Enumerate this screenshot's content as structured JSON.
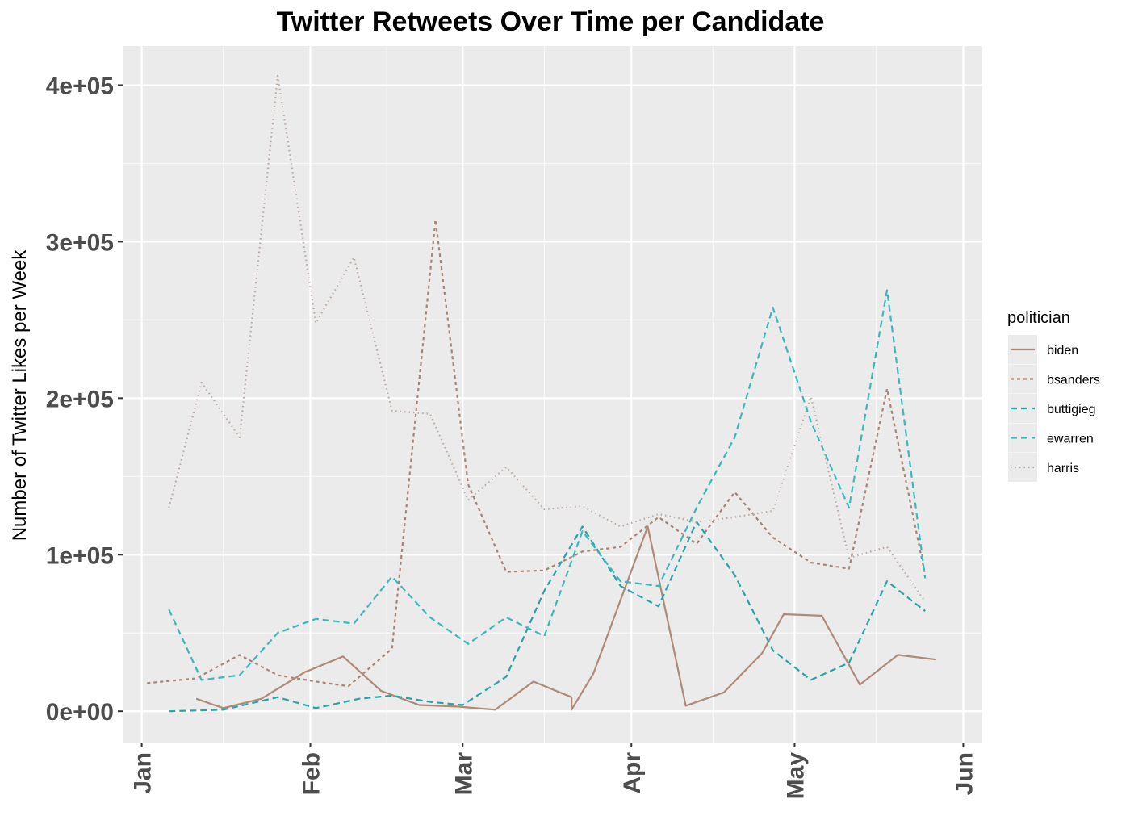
{
  "chart_data": {
    "type": "line",
    "title": "Twitter Retweets Over Time per Candidate",
    "ylabel": "Number of Twitter Likes per Week",
    "xlabel": "",
    "xlim": [
      "2019-01-01",
      "2019-06-01"
    ],
    "ylim": [
      -20000,
      425000
    ],
    "x_ticks": [
      {
        "date": "2019-01-01",
        "label": "Jan"
      },
      {
        "date": "2019-02-01",
        "label": "Feb"
      },
      {
        "date": "2019-03-01",
        "label": "Mar"
      },
      {
        "date": "2019-04-01",
        "label": "Apr"
      },
      {
        "date": "2019-05-01",
        "label": "May"
      },
      {
        "date": "2019-06-01",
        "label": "Jun"
      }
    ],
    "x_minor_dates": [
      "2019-01-16",
      "2019-02-15",
      "2019-03-16",
      "2019-04-16",
      "2019-05-16"
    ],
    "y_ticks": [
      {
        "value": 0,
        "label": "0e+00"
      },
      {
        "value": 100000,
        "label": "1e+05"
      },
      {
        "value": 200000,
        "label": "2e+05"
      },
      {
        "value": 300000,
        "label": "3e+05"
      },
      {
        "value": 400000,
        "label": "4e+05"
      }
    ],
    "y_minor_values": [
      50000,
      150000,
      250000,
      350000
    ],
    "grid": true,
    "legend": {
      "title": "politician",
      "position": "right"
    },
    "series": [
      {
        "name": "biden",
        "color": "#b08a78",
        "dash": "solid",
        "points": [
          {
            "x": "2019-01-11",
            "y": 8000
          },
          {
            "x": "2019-01-16",
            "y": 2000
          },
          {
            "x": "2019-01-23",
            "y": 8000
          },
          {
            "x": "2019-01-31",
            "y": 25000
          },
          {
            "x": "2019-02-07",
            "y": 35000
          },
          {
            "x": "2019-02-14",
            "y": 13000
          },
          {
            "x": "2019-02-21",
            "y": 4000
          },
          {
            "x": "2019-02-28",
            "y": 3000
          },
          {
            "x": "2019-03-07",
            "y": 1000
          },
          {
            "x": "2019-03-14",
            "y": 19000
          },
          {
            "x": "2019-03-21",
            "y": 9000
          },
          {
            "x": "2019-03-21",
            "y": 1000
          },
          {
            "x": "2019-03-25",
            "y": 24000
          },
          {
            "x": "2019-04-04",
            "y": 118000
          },
          {
            "x": "2019-04-11",
            "y": 3500
          },
          {
            "x": "2019-04-18",
            "y": 12000
          },
          {
            "x": "2019-04-25",
            "y": 37000
          },
          {
            "x": "2019-04-29",
            "y": 62000
          },
          {
            "x": "2019-05-06",
            "y": 61000
          },
          {
            "x": "2019-05-13",
            "y": 17000
          },
          {
            "x": "2019-05-20",
            "y": 36000
          },
          {
            "x": "2019-05-27",
            "y": 33000
          }
        ]
      },
      {
        "name": "bsanders",
        "color": "#a98373",
        "dash": "4 4",
        "points": [
          {
            "x": "2019-01-02",
            "y": 18000
          },
          {
            "x": "2019-01-11",
            "y": 21000
          },
          {
            "x": "2019-01-19",
            "y": 36000
          },
          {
            "x": "2019-01-26",
            "y": 23000
          },
          {
            "x": "2019-02-02",
            "y": 19000
          },
          {
            "x": "2019-02-08",
            "y": 16000
          },
          {
            "x": "2019-02-16",
            "y": 40000
          },
          {
            "x": "2019-02-24",
            "y": 314000
          },
          {
            "x": "2019-03-02",
            "y": 145000
          },
          {
            "x": "2019-03-09",
            "y": 89000
          },
          {
            "x": "2019-03-16",
            "y": 90000
          },
          {
            "x": "2019-03-23",
            "y": 102000
          },
          {
            "x": "2019-03-30",
            "y": 105000
          },
          {
            "x": "2019-04-06",
            "y": 124000
          },
          {
            "x": "2019-04-13",
            "y": 107000
          },
          {
            "x": "2019-04-20",
            "y": 140000
          },
          {
            "x": "2019-04-27",
            "y": 111000
          },
          {
            "x": "2019-05-04",
            "y": 95000
          },
          {
            "x": "2019-05-11",
            "y": 91000
          },
          {
            "x": "2019-05-18",
            "y": 206000
          },
          {
            "x": "2019-05-25",
            "y": 87000
          }
        ]
      },
      {
        "name": "buttigieg",
        "color": "#2aa3a8",
        "dash": "8 5",
        "points": [
          {
            "x": "2019-01-06",
            "y": 0
          },
          {
            "x": "2019-01-16",
            "y": 1000
          },
          {
            "x": "2019-01-26",
            "y": 9000
          },
          {
            "x": "2019-02-02",
            "y": 2000
          },
          {
            "x": "2019-02-10",
            "y": 8000
          },
          {
            "x": "2019-02-16",
            "y": 10000
          },
          {
            "x": "2019-02-23",
            "y": 6000
          },
          {
            "x": "2019-03-01",
            "y": 4000
          },
          {
            "x": "2019-03-09",
            "y": 22000
          },
          {
            "x": "2019-03-16",
            "y": 77000
          },
          {
            "x": "2019-03-23",
            "y": 118000
          },
          {
            "x": "2019-03-30",
            "y": 80000
          },
          {
            "x": "2019-04-06",
            "y": 67000
          },
          {
            "x": "2019-04-13",
            "y": 121000
          },
          {
            "x": "2019-04-20",
            "y": 87000
          },
          {
            "x": "2019-04-27",
            "y": 39000
          },
          {
            "x": "2019-05-04",
            "y": 20000
          },
          {
            "x": "2019-05-11",
            "y": 31000
          },
          {
            "x": "2019-05-18",
            "y": 83000
          },
          {
            "x": "2019-05-25",
            "y": 64000
          }
        ]
      },
      {
        "name": "ewarren",
        "color": "#3bb8bc",
        "dash": "8 5",
        "points": [
          {
            "x": "2019-01-06",
            "y": 65000
          },
          {
            "x": "2019-01-12",
            "y": 20000
          },
          {
            "x": "2019-01-19",
            "y": 23000
          },
          {
            "x": "2019-01-26",
            "y": 50000
          },
          {
            "x": "2019-02-02",
            "y": 59000
          },
          {
            "x": "2019-02-09",
            "y": 56000
          },
          {
            "x": "2019-02-16",
            "y": 86000
          },
          {
            "x": "2019-02-23",
            "y": 60000
          },
          {
            "x": "2019-03-02",
            "y": 43000
          },
          {
            "x": "2019-03-09",
            "y": 60000
          },
          {
            "x": "2019-03-16",
            "y": 48000
          },
          {
            "x": "2019-03-23",
            "y": 115000
          },
          {
            "x": "2019-03-30",
            "y": 83000
          },
          {
            "x": "2019-04-06",
            "y": 80000
          },
          {
            "x": "2019-04-13",
            "y": 130000
          },
          {
            "x": "2019-04-20",
            "y": 175000
          },
          {
            "x": "2019-04-27",
            "y": 258000
          },
          {
            "x": "2019-05-04",
            "y": 185000
          },
          {
            "x": "2019-05-11",
            "y": 130000
          },
          {
            "x": "2019-05-18",
            "y": 269000
          },
          {
            "x": "2019-05-25",
            "y": 85000
          }
        ]
      },
      {
        "name": "harris",
        "color": "#bdaaa2",
        "dash": "1.5 4",
        "points": [
          {
            "x": "2019-01-06",
            "y": 130000
          },
          {
            "x": "2019-01-12",
            "y": 210000
          },
          {
            "x": "2019-01-19",
            "y": 175000
          },
          {
            "x": "2019-01-26",
            "y": 406000
          },
          {
            "x": "2019-02-02",
            "y": 248000
          },
          {
            "x": "2019-02-09",
            "y": 290000
          },
          {
            "x": "2019-02-16",
            "y": 192000
          },
          {
            "x": "2019-02-23",
            "y": 190000
          },
          {
            "x": "2019-03-02",
            "y": 135000
          },
          {
            "x": "2019-03-09",
            "y": 156000
          },
          {
            "x": "2019-03-16",
            "y": 129000
          },
          {
            "x": "2019-03-23",
            "y": 131000
          },
          {
            "x": "2019-03-30",
            "y": 118000
          },
          {
            "x": "2019-04-06",
            "y": 126000
          },
          {
            "x": "2019-04-13",
            "y": 121000
          },
          {
            "x": "2019-04-20",
            "y": 124000
          },
          {
            "x": "2019-04-27",
            "y": 128000
          },
          {
            "x": "2019-05-04",
            "y": 201000
          },
          {
            "x": "2019-05-11",
            "y": 98000
          },
          {
            "x": "2019-05-18",
            "y": 105000
          },
          {
            "x": "2019-05-25",
            "y": 70000
          }
        ]
      }
    ]
  }
}
